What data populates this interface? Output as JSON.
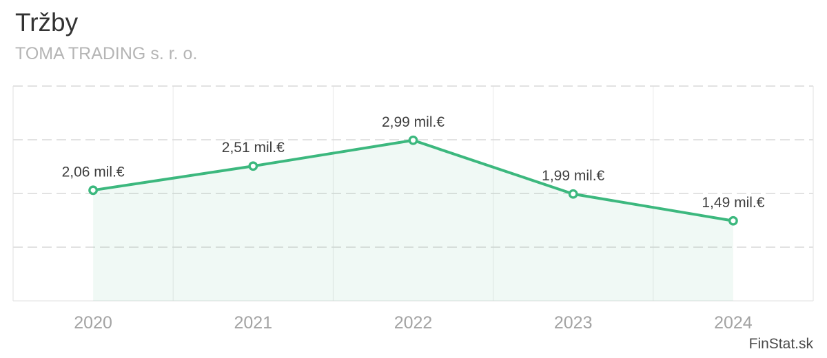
{
  "header": {
    "title": "Tržby",
    "subtitle": "TOMA TRADING s. r. o."
  },
  "watermark": {
    "label": "FinStat.sk"
  },
  "colors": {
    "line": "#3cb87e",
    "area_fill": "#3cb87e",
    "area_opacity": "0.08",
    "marker_fill": "#ffffff",
    "grid_dashed": "#d9d9d9",
    "grid_solid": "#e9e9e9",
    "border": "#e2e2e2",
    "value_label_text": "#3d3d3d",
    "axis_label_text": "#a3a3a3"
  },
  "chart_data": {
    "type": "area",
    "title": "Tržby",
    "subtitle": "TOMA TRADING s. r. o.",
    "categories": [
      "2020",
      "2021",
      "2022",
      "2023",
      "2024"
    ],
    "values": [
      2.06,
      2.51,
      2.99,
      1.99,
      1.49
    ],
    "value_labels": [
      "2,06 mil.€",
      "2,51 mil.€",
      "2,99 mil.€",
      "1,99 mil.€",
      "1,49 mil.€"
    ],
    "unit": "mil.€",
    "xlabel": "",
    "ylabel": "",
    "ylim": [
      0,
      4
    ],
    "y_gridline_values": [
      1,
      2,
      3,
      4
    ],
    "grid": "horizontal dashed lines, vertical solid lines at category band boundaries, no y-axis tick labels",
    "legend": "none",
    "series_name": "Tržby"
  }
}
